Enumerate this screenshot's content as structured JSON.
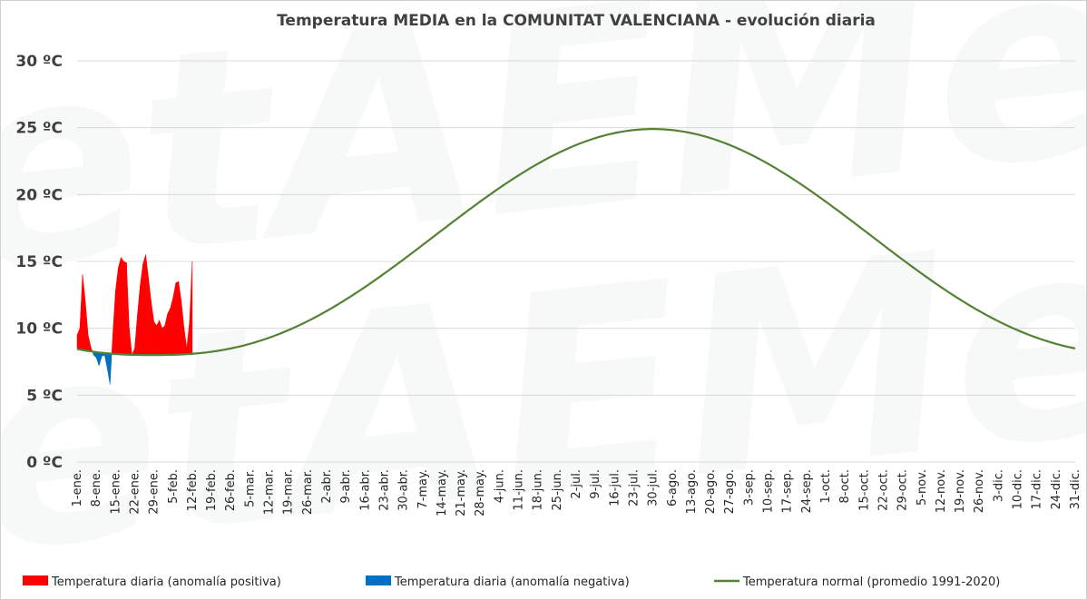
{
  "chart_data": {
    "type": "area",
    "title": "Temperatura MEDIA en la COMUNITAT VALENCIANA - evolución diaria",
    "ylim": [
      0,
      30
    ],
    "y_ticks": [
      "0 ºC",
      "5 ºC",
      "10 ºC",
      "15 ºC",
      "20 ºC",
      "25 ºC",
      "30 ºC"
    ],
    "y_tick_values": [
      0,
      5,
      10,
      15,
      20,
      25,
      30
    ],
    "x_day_range": [
      1,
      365
    ],
    "x_ticks": [
      "1-ene.",
      "8-ene.",
      "15-ene.",
      "22-ene.",
      "29-ene.",
      "5-feb.",
      "12-feb.",
      "19-feb.",
      "26-feb.",
      "5-mar.",
      "12-mar.",
      "19-mar.",
      "26-mar.",
      "2-abr.",
      "9-abr.",
      "16-abr.",
      "23-abr.",
      "30-abr.",
      "7-may.",
      "14-may.",
      "21-may.",
      "28-may.",
      "4-jun.",
      "11-jun.",
      "18-jun.",
      "25-jun.",
      "2-jul.",
      "9-jul.",
      "16-jul.",
      "23-jul.",
      "30-jul.",
      "6-ago.",
      "13-ago.",
      "20-ago.",
      "27-ago.",
      "3-sep.",
      "10-sep.",
      "17-sep.",
      "24-sep.",
      "1-oct.",
      "8-oct.",
      "15-oct.",
      "22-oct.",
      "29-oct.",
      "5-nov.",
      "12-nov.",
      "19-nov.",
      "26-nov.",
      "3-dic.",
      "10-dic.",
      "17-dic.",
      "24-dic.",
      "31-dic."
    ],
    "grid": true,
    "legend_position": "bottom",
    "normal": {
      "name": "Temperatura normal (promedio 1991-2020)",
      "color": "#548235",
      "min": 8.0,
      "max": 24.9,
      "peak_day": 211
    },
    "daily": {
      "x": [
        1,
        2,
        3,
        4,
        5,
        6,
        7,
        8,
        9,
        10,
        11,
        12,
        13,
        14,
        15,
        16,
        17,
        18,
        19,
        20,
        21,
        22,
        23,
        24,
        25,
        26,
        27,
        28,
        29,
        30,
        31,
        32,
        33,
        34,
        35,
        36,
        37,
        38,
        39,
        40,
        41,
        42,
        43
      ],
      "values": [
        9.5,
        10.0,
        14.0,
        12.0,
        9.5,
        8.6,
        8.0,
        7.8,
        7.2,
        7.9,
        8.0,
        7.0,
        5.8,
        9.5,
        12.8,
        14.5,
        15.3,
        15.0,
        14.9,
        10.0,
        8.0,
        8.5,
        11.0,
        13.2,
        14.8,
        15.5,
        13.8,
        12.0,
        10.5,
        10.2,
        10.6,
        10.0,
        10.2,
        11.1,
        11.5,
        12.3,
        13.4,
        13.5,
        12.0,
        10.0,
        8.5,
        10.5,
        15.0
      ],
      "positive_name": "Temperatura diaria (anomalía positiva)",
      "negative_name": "Temperatura diaria (anomalía negativa)",
      "positive_color": "#ff0000",
      "negative_color": "#0070c0"
    }
  }
}
